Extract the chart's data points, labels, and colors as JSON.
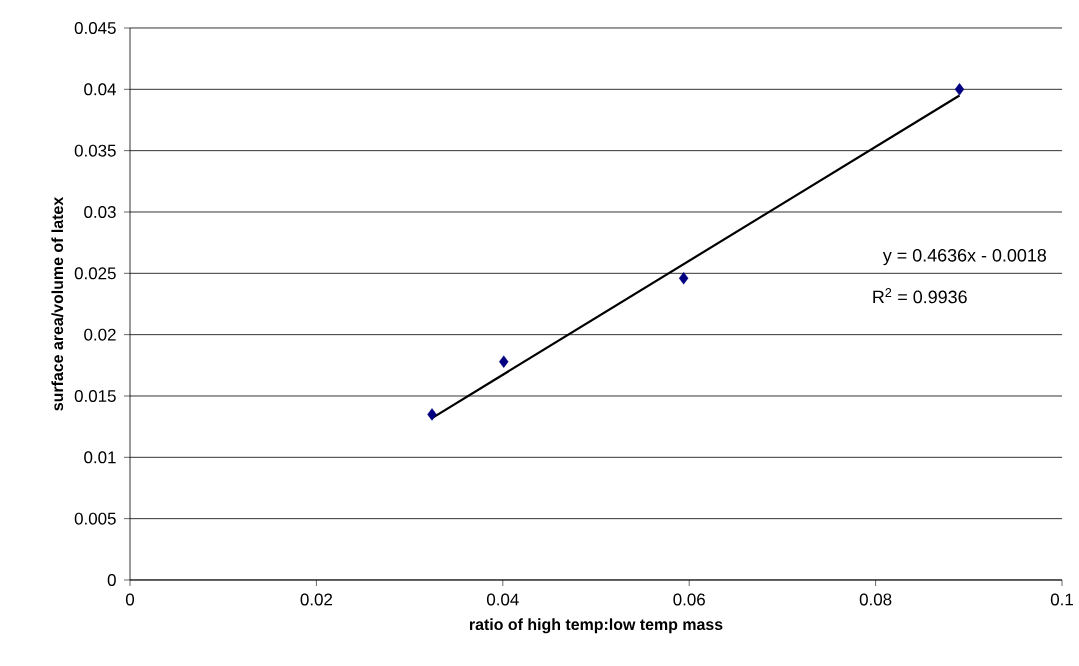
{
  "chart_data": {
    "type": "scatter",
    "xlabel": "ratio of high temp:low temp mass",
    "ylabel": "surface area/volume of latex",
    "series": [
      {
        "color": "#000080",
        "marker": "diamond",
        "x": [
          0.0324,
          0.0401,
          0.0594,
          0.089
        ],
        "values": [
          0.0135,
          0.0178,
          0.0246,
          0.04
        ]
      },
      {
        "type": "line",
        "color": "#000000",
        "marker": "none",
        "line_style": "solid",
        "x": [
          0.0324,
          0.089
        ],
        "values": [
          0.0132,
          0.0395
        ]
      }
    ],
    "xlim": [
      0,
      0.1
    ],
    "xticks": [
      0,
      0.02,
      0.04,
      0.06,
      0.08,
      0.1
    ],
    "ylim": [
      0,
      0.045
    ],
    "yticks": [
      0,
      0.005,
      0.01,
      0.015,
      0.02,
      0.025,
      0.03,
      0.035,
      0.04,
      0.045
    ],
    "grid": "y",
    "annotations": [
      "y = 0.4636x - 0.0018",
      "R$^{2}$ = 0.9936"
    ]
  }
}
